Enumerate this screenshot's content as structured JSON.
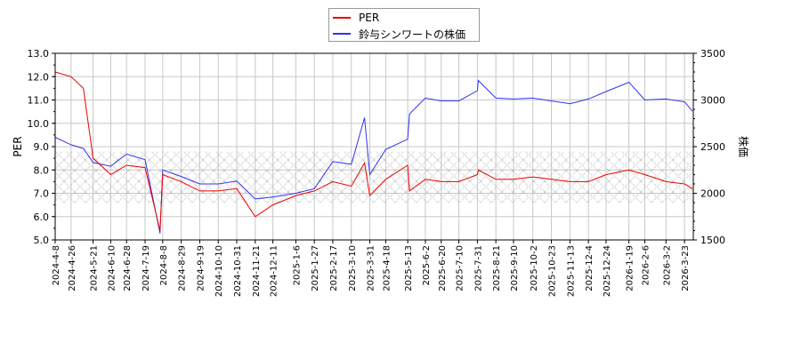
{
  "legend": {
    "items": [
      {
        "label": "PER",
        "color": "#ee0000"
      },
      {
        "label": "鈴与シンワートの株価",
        "color": "#3333ee"
      }
    ]
  },
  "axes": {
    "left_label": "PER",
    "right_label": "株価",
    "left_ticks": [
      "5.0",
      "6.0",
      "7.0",
      "8.0",
      "9.0",
      "10.0",
      "11.0",
      "12.0",
      "13.0"
    ],
    "right_ticks": [
      "1500",
      "2000",
      "2500",
      "3000",
      "3500"
    ]
  },
  "chart_data": {
    "type": "line",
    "title": "",
    "xlabel": "",
    "ylabel": "PER",
    "y2label": "株価",
    "ylim": [
      5.0,
      13.0
    ],
    "y2lim": [
      1500,
      3500
    ],
    "grid": true,
    "legend_position": "top-center",
    "band": {
      "description": "hatched reference band on PER axis",
      "range": [
        6.6,
        8.8
      ]
    },
    "x_tick_labels": [
      "2024-4-8",
      "2024-4-26",
      "2024-5-21",
      "2024-6-10",
      "2024-6-28",
      "2024-7-19",
      "2024-8-8",
      "2024-8-29",
      "2024-9-19",
      "2024-10-10",
      "2024-10-31",
      "2024-11-21",
      "2024-12-11",
      "2025-1-6",
      "2025-1-27",
      "2025-2-17",
      "2025-3-10",
      "2025-3-31",
      "2025-4-18",
      "2025-5-13",
      "2025-6-2",
      "2025-6-20",
      "2025-7-10",
      "2025-7-31",
      "2025-8-21",
      "2025-9-10",
      "2025-10-2",
      "2025-10-23",
      "2025-11-13",
      "2025-12-4",
      "2025-12-24",
      "2026-1-19",
      "2026-2-6",
      "2026-3-2",
      "2026-3-23"
    ],
    "x": [
      "2024-4-8",
      "2024-4-26",
      "2024-5-10",
      "2024-5-21",
      "2024-6-10",
      "2024-6-28",
      "2024-7-19",
      "2024-8-5",
      "2024-8-8",
      "2024-8-29",
      "2024-9-19",
      "2024-10-10",
      "2024-10-31",
      "2024-11-21",
      "2024-12-11",
      "2025-1-6",
      "2025-1-27",
      "2025-2-17",
      "2025-3-10",
      "2025-3-25",
      "2025-3-31",
      "2025-4-18",
      "2025-5-13",
      "2025-5-15",
      "2025-6-2",
      "2025-6-20",
      "2025-7-10",
      "2025-7-31",
      "2025-8-1",
      "2025-8-21",
      "2025-9-10",
      "2025-10-2",
      "2025-10-23",
      "2025-11-13",
      "2025-12-4",
      "2025-12-24",
      "2026-1-19",
      "2026-2-6",
      "2026-3-2",
      "2026-3-23",
      "2026-4-1"
    ],
    "series": [
      {
        "name": "PER",
        "axis": "left",
        "color": "#ee0000",
        "values": [
          12.2,
          12.0,
          11.5,
          8.5,
          7.8,
          8.2,
          8.1,
          5.4,
          7.8,
          7.5,
          7.1,
          7.1,
          7.2,
          6.0,
          6.5,
          6.9,
          7.1,
          7.5,
          7.3,
          8.3,
          6.9,
          7.6,
          8.2,
          7.1,
          7.6,
          7.5,
          7.5,
          7.8,
          8.0,
          7.6,
          7.6,
          7.7,
          7.6,
          7.5,
          7.5,
          7.8,
          8.0,
          7.8,
          7.5,
          7.4,
          7.2
        ]
      },
      {
        "name": "鈴与シンワートの株価",
        "axis": "right",
        "color": "#3333ee",
        "values": [
          2600,
          2520,
          2480,
          2330,
          2290,
          2420,
          2360,
          1570,
          2250,
          2180,
          2100,
          2100,
          2130,
          1940,
          1960,
          2000,
          2050,
          2340,
          2310,
          2810,
          2200,
          2470,
          2580,
          2850,
          3020,
          2990,
          2990,
          3100,
          3210,
          3020,
          3010,
          3020,
          2990,
          2960,
          3010,
          3090,
          3190,
          3000,
          3010,
          2980,
          2880
        ]
      }
    ]
  }
}
